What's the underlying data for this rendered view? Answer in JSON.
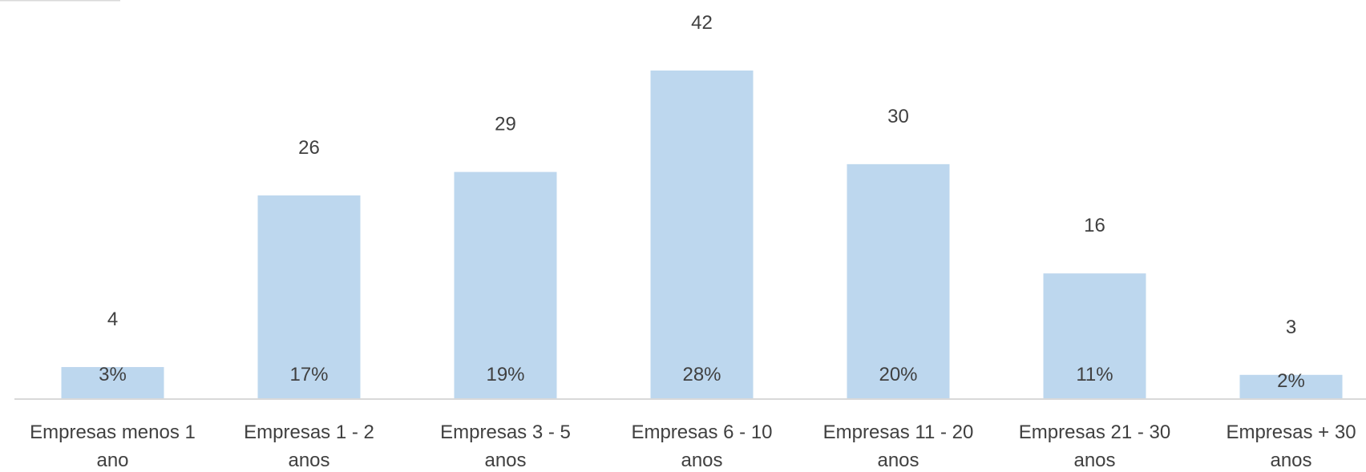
{
  "chart_data": {
    "type": "bar",
    "title": "",
    "xlabel": "",
    "ylabel": "",
    "ylim": [
      0,
      45
    ],
    "grid": false,
    "legend": "none",
    "bar_color": "#BDD7EE",
    "axis_color": "#D9D9D9",
    "text_color": "#404040",
    "categories": [
      [
        "Empresas menos 1",
        "ano"
      ],
      [
        "Empresas 1 - 2",
        "anos"
      ],
      [
        "Empresas 3 - 5",
        "anos"
      ],
      [
        "Empresas 6 - 10",
        "anos"
      ],
      [
        "Empresas 11 - 20",
        "anos"
      ],
      [
        "Empresas 21 - 30",
        "anos"
      ],
      [
        "Empresas + 30",
        "anos"
      ]
    ],
    "values": [
      4,
      26,
      29,
      42,
      30,
      16,
      3
    ],
    "percent_labels": [
      "3%",
      "17%",
      "19%",
      "28%",
      "20%",
      "11%",
      "2%"
    ]
  }
}
